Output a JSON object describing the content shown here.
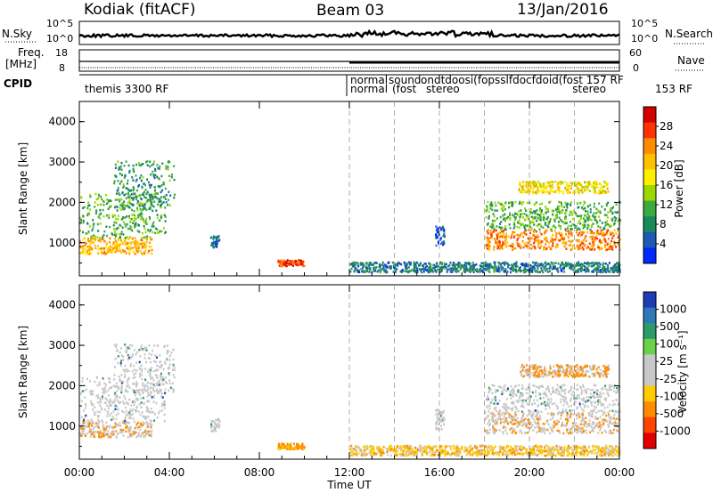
{
  "header": {
    "station": "Kodiak (fitACF)",
    "beam": "Beam 03",
    "date": "13/Jan/2016"
  },
  "sky_panel": {
    "left_label": "N.Sky",
    "right_label": "N.Search",
    "left_ticks": [
      "10^5",
      "10^0"
    ],
    "right_ticks": [
      "10^5",
      "10^0"
    ]
  },
  "freq_panel": {
    "left_label_line1": "Freq.",
    "left_label_line2": "[MHz]",
    "right_label": "Nave",
    "left_ticks": [
      "18",
      "8"
    ],
    "right_ticks": [
      "60",
      "0"
    ]
  },
  "cpid_panel": {
    "label": "CPID",
    "programs": [
      {
        "text": "themis 3300 RF",
        "start": "00:00"
      },
      {
        "text": "normal",
        "start": "12:00"
      },
      {
        "text": "normal",
        "start": "12:00",
        "row": 2
      },
      {
        "text": "sound",
        "start": "14:00"
      },
      {
        "text": "(fost",
        "start": "14:00",
        "row": 2
      },
      {
        "text": "stereo",
        "start": "16:00",
        "row": 2
      },
      {
        "text": "(fost",
        "start": "18:00"
      },
      {
        "text": "157 RF",
        "start": "21:00"
      },
      {
        "text": "stereo",
        "start": "20:30",
        "row": 2
      },
      {
        "text": "153 RF",
        "start": "22:00",
        "row": 2
      }
    ],
    "cluttered": "ondtdoosi(fopsslfdocfdoid(fost 157 RF"
  },
  "time_axis": {
    "label": "Time UT",
    "ticks": [
      "00:00",
      "04:00",
      "08:00",
      "12:00",
      "16:00",
      "20:00",
      "00:00"
    ]
  },
  "power_panel": {
    "y_label": "Slant Range [km]",
    "colorbar_label": "Power [dB]",
    "colorbar_ticks": [
      "28",
      "24",
      "20",
      "16",
      "12",
      "8",
      "4"
    ],
    "colors": [
      "#d40000",
      "#ff3300",
      "#ff8c00",
      "#ffc000",
      "#ffee00",
      "#9bd700",
      "#3caa3c",
      "#1a8a5a",
      "#1e5ab4",
      "#0028ff"
    ]
  },
  "velocity_panel": {
    "y_label": "Slant Range [km]",
    "colorbar_label": "Velocity [m s⁻¹]",
    "colorbar_ticks": [
      "1000",
      "500",
      "100",
      "25",
      "-25",
      "-100",
      "-500",
      "-1000"
    ],
    "colors": [
      "#1e3cb4",
      "#2e7ab8",
      "#2e9a6a",
      "#6bd04a",
      "#c8c8c8",
      "#c8c8c8",
      "#ffcc00",
      "#ff8c00",
      "#ff4400",
      "#e00000"
    ]
  },
  "chart_data": {
    "type": "heatmap",
    "x_range": [
      "00:00",
      "24:00"
    ],
    "y_range_km": [
      180,
      4500
    ],
    "y_ticks": [
      1000,
      2000,
      3000,
      4000
    ],
    "power_range_db": [
      0,
      30
    ],
    "velocity_range": [
      -1000,
      1000
    ],
    "power_regions": [
      {
        "t0": 0.0,
        "t1": 3.2,
        "r0": 700,
        "r1": 1100,
        "power": 22
      },
      {
        "t0": 0.0,
        "t1": 3.8,
        "r0": 1100,
        "r1": 2200,
        "power": 12
      },
      {
        "t0": 1.5,
        "t1": 4.2,
        "r0": 1800,
        "r1": 3000,
        "power": 10
      },
      {
        "t0": 5.8,
        "t1": 6.2,
        "r0": 850,
        "r1": 1150,
        "power": 6
      },
      {
        "t0": 8.8,
        "t1": 10.0,
        "r0": 400,
        "r1": 550,
        "power": 27
      },
      {
        "t0": 12.0,
        "t1": 24.0,
        "r0": 250,
        "r1": 500,
        "power": 8
      },
      {
        "t0": 15.8,
        "t1": 16.2,
        "r0": 900,
        "r1": 1400,
        "power": 5
      },
      {
        "t0": 18.0,
        "t1": 24.0,
        "r0": 800,
        "r1": 1300,
        "power": 24
      },
      {
        "t0": 18.0,
        "t1": 24.0,
        "r0": 1300,
        "r1": 2000,
        "power": 12
      },
      {
        "t0": 19.5,
        "t1": 23.5,
        "r0": 2200,
        "r1": 2500,
        "power": 19
      }
    ]
  }
}
